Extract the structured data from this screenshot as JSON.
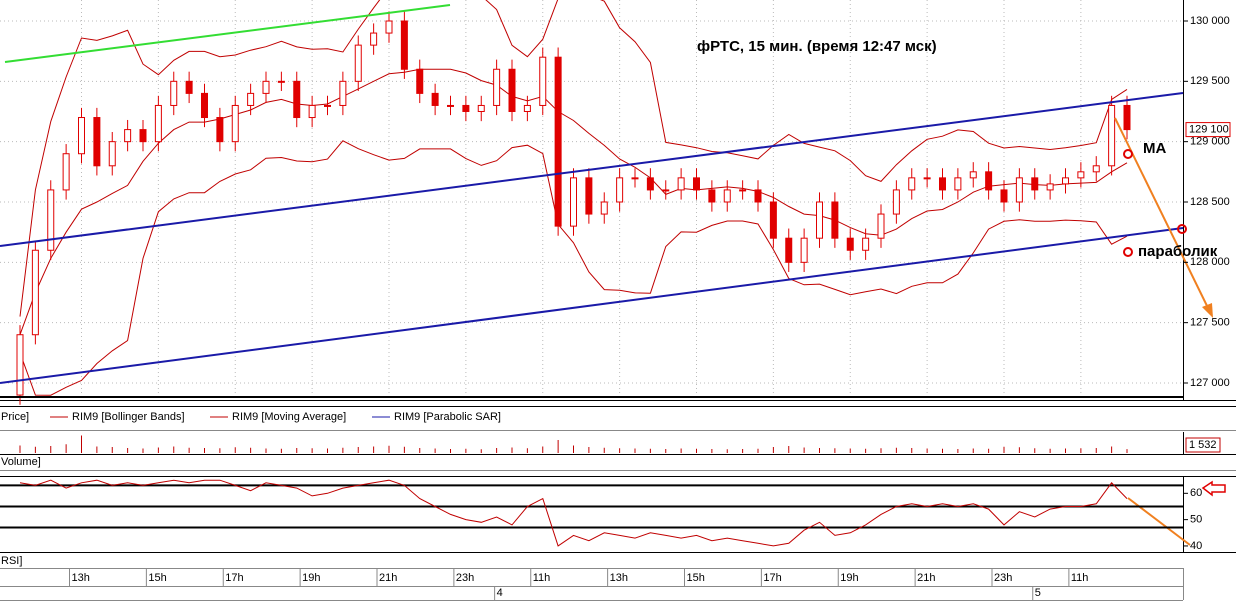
{
  "chart_data": {
    "type": "candlestick",
    "title": "фРТС, 15 мин.  (время 12:47 мск)",
    "annotations": [
      "MA",
      "параболик"
    ],
    "legend": [
      "Price]",
      "RIM9 [Bollinger Bands]",
      "RIM9 [Moving Average]",
      "RIM9 [Parabolic SAR]"
    ],
    "categories": [
      null,
      null,
      null,
      null,
      "13h",
      null,
      null,
      null,
      null,
      "15h",
      null,
      null,
      null,
      null,
      "17h",
      null,
      null,
      null,
      null,
      "19h",
      null,
      null,
      null,
      null,
      "21h",
      null,
      null,
      null,
      null,
      "23h",
      null,
      null,
      null,
      null,
      "11h",
      null,
      null,
      null,
      null,
      "13h",
      null,
      null,
      null,
      null,
      "15h",
      null,
      null,
      null,
      null,
      "17h",
      null,
      null,
      null,
      null,
      "19h",
      null,
      null,
      null,
      null,
      "21h",
      null,
      null,
      null,
      null,
      "23h",
      null,
      null,
      null,
      null,
      "11h",
      null,
      null,
      null
    ],
    "day_labels": [
      null,
      null,
      null,
      null,
      null,
      null,
      null,
      null,
      null,
      null,
      null,
      null,
      null,
      null,
      null,
      null,
      null,
      null,
      null,
      null,
      null,
      null,
      null,
      null,
      null,
      null,
      null,
      null,
      null,
      null,
      null,
      "4",
      null,
      null,
      null,
      null,
      null,
      null,
      null,
      null,
      null,
      null,
      null,
      null,
      null,
      null,
      null,
      null,
      null,
      null,
      null,
      null,
      null,
      null,
      null,
      null,
      null,
      null,
      null,
      null,
      null,
      null,
      null,
      null,
      null,
      null,
      "5",
      null,
      null,
      null,
      null,
      null,
      null
    ],
    "open": [
      126900,
      127400,
      128100,
      128600,
      128900,
      129200,
      128800,
      129000,
      129100,
      129000,
      129300,
      129500,
      129400,
      129200,
      129000,
      129300,
      129400,
      129500,
      129500,
      129200,
      129300,
      129300,
      129500,
      129800,
      129900,
      130000,
      129600,
      129400,
      129300,
      129300,
      129250,
      129300,
      129600,
      129250,
      129300,
      129700,
      128300,
      128700,
      128400,
      128500,
      128700,
      128700,
      128600,
      128600,
      128700,
      128600,
      128500,
      128600,
      128600,
      128500,
      128200,
      128000,
      128200,
      128500,
      128200,
      128100,
      128200,
      128400,
      128600,
      128700,
      128700,
      128600,
      128700,
      128750,
      128600,
      128500,
      128700,
      128600,
      128650,
      128700,
      128750,
      128800,
      129300
    ],
    "high": [
      127480,
      128180,
      128680,
      128980,
      129280,
      129280,
      129080,
      129180,
      129180,
      129380,
      129580,
      129580,
      129480,
      129280,
      129380,
      129480,
      129580,
      129580,
      129580,
      129380,
      129380,
      129580,
      129880,
      129980,
      130080,
      130080,
      129680,
      129480,
      129380,
      129380,
      129380,
      129680,
      129680,
      129380,
      129780,
      129780,
      128780,
      128780,
      128580,
      128780,
      128780,
      128780,
      128680,
      128780,
      128780,
      128680,
      128680,
      128680,
      128680,
      128580,
      128280,
      128280,
      128580,
      128580,
      128280,
      128280,
      128480,
      128680,
      128780,
      128780,
      128780,
      128780,
      128830,
      128830,
      128680,
      128780,
      128780,
      128730,
      128780,
      128830,
      128880,
      129380,
      129380
    ],
    "low": [
      126820,
      127320,
      128020,
      128520,
      128820,
      128720,
      128720,
      128920,
      128920,
      128920,
      129220,
      129320,
      129120,
      128920,
      128920,
      129220,
      129320,
      129420,
      129120,
      129120,
      129220,
      129220,
      129420,
      129720,
      129820,
      129520,
      129320,
      129220,
      129220,
      129170,
      129170,
      129220,
      129170,
      129170,
      129220,
      128220,
      128220,
      128320,
      128320,
      128420,
      128620,
      128520,
      128520,
      128520,
      128520,
      128420,
      128420,
      128520,
      128420,
      128120,
      127920,
      127920,
      128120,
      128120,
      128020,
      128020,
      128120,
      128320,
      128520,
      128620,
      128520,
      128520,
      128620,
      128520,
      128420,
      128420,
      128520,
      128520,
      128570,
      128620,
      128670,
      128720,
      129020
    ],
    "close": [
      127400,
      128100,
      128600,
      128900,
      129200,
      128800,
      129000,
      129100,
      129000,
      129300,
      129500,
      129400,
      129200,
      129000,
      129300,
      129400,
      129500,
      129500,
      129200,
      129300,
      129300,
      129500,
      129800,
      129900,
      130000,
      129600,
      129400,
      129300,
      129300,
      129250,
      129300,
      129600,
      129250,
      129300,
      129700,
      128300,
      128700,
      128400,
      128500,
      128700,
      128700,
      128600,
      128600,
      128700,
      128600,
      128500,
      128600,
      128600,
      128500,
      128200,
      128000,
      128200,
      128500,
      128200,
      128100,
      128200,
      128400,
      128600,
      128700,
      128700,
      128600,
      128700,
      128750,
      128600,
      128500,
      128700,
      128600,
      128650,
      128700,
      128750,
      128800,
      129300,
      129100
    ],
    "last_price": 129100,
    "last_price_label": "129 100",
    "color": "#e00000",
    "ylim": [
      126859,
      130174
    ],
    "yticks": [
      {
        "value": 127000,
        "label": "127 000"
      },
      {
        "value": 127500,
        "label": "127 500"
      },
      {
        "value": 128000,
        "label": "128 000"
      },
      {
        "value": 128500,
        "label": "128 500"
      },
      {
        "value": 129000,
        "label": "129 000"
      },
      {
        "value": 129500,
        "label": "129 500"
      },
      {
        "value": 130000,
        "label": "130 000"
      }
    ],
    "grid": true,
    "volume": {
      "label": "Volume]",
      "color": "#c00000",
      "ylim": [
        0,
        8000
      ],
      "values": [
        3000,
        2500,
        2800,
        3500,
        7000,
        2600,
        2400,
        2000,
        1800,
        2200,
        2600,
        2100,
        2000,
        1900,
        2300,
        2100,
        1800,
        1700,
        2000,
        1900,
        1800,
        2100,
        2400,
        2600,
        2900,
        2500,
        2000,
        1800,
        1600,
        1700,
        1500,
        2000,
        2200,
        1900,
        2600,
        5200,
        3000,
        2400,
        2100,
        1900,
        1800,
        1700,
        1600,
        1800,
        1700,
        1600,
        1500,
        1600,
        1700,
        2400,
        2800,
        2200,
        2000,
        1900,
        1800,
        1700,
        1900,
        2100,
        2000,
        1800,
        1700,
        1600,
        1800,
        1700,
        2500,
        2300,
        1900,
        1700,
        1800,
        1900,
        2000,
        2600,
        1532
      ],
      "last_label": "1 532"
    },
    "rsi": {
      "label": "RSI]",
      "color": "#c00000",
      "ylim": [
        37.7,
        66.2
      ],
      "yticks": [
        40,
        50,
        60
      ],
      "levels": [
        63,
        55,
        47
      ],
      "values": [
        64,
        63,
        65,
        62,
        64,
        65,
        63,
        64,
        63,
        64,
        65,
        64,
        65,
        65,
        63,
        61,
        64,
        63,
        62,
        59,
        60,
        62,
        63,
        64,
        65,
        63,
        58,
        55,
        52,
        50,
        49,
        51,
        48,
        55,
        58,
        40,
        44,
        42,
        45,
        44,
        43,
        45,
        44,
        43,
        44,
        42,
        43,
        42,
        41,
        40,
        41,
        46,
        49,
        44,
        45,
        48,
        52,
        55,
        56,
        55,
        56,
        55,
        56,
        54,
        48,
        53,
        51,
        54,
        55,
        55,
        56,
        64,
        58
      ]
    }
  }
}
